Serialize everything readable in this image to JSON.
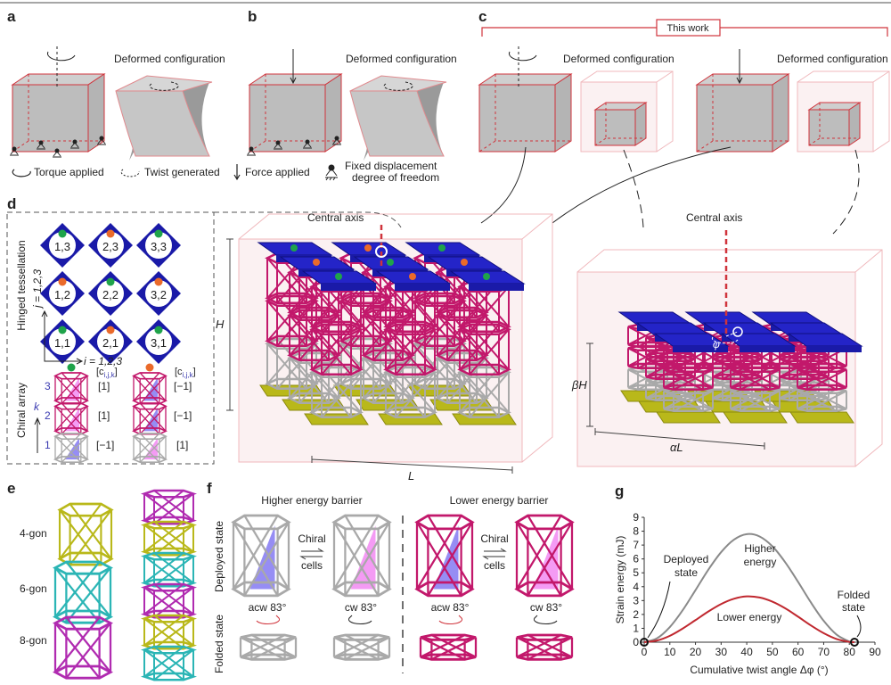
{
  "panels": {
    "a": "a",
    "b": "b",
    "c": "c",
    "d": "d",
    "e": "e",
    "f": "f",
    "g": "g"
  },
  "top": {
    "deformed_label": "Deformed configuration",
    "this_work": "This work"
  },
  "legend": {
    "torque": "Torque applied",
    "twist": "Twist generated",
    "force": "Force applied",
    "fixed_line1": "Fixed displacement",
    "fixed_line2": "degree of freedom"
  },
  "panel_d": {
    "hinged": "Hinged tessellation",
    "chiral": "Chiral array",
    "j_axis": "j = 1,2,3",
    "i_axis": "i = 1,2,3",
    "cells": [
      {
        "label": "1,3",
        "dot": "green"
      },
      {
        "label": "2,3",
        "dot": "orange"
      },
      {
        "label": "3,3",
        "dot": "green"
      },
      {
        "label": "1,2",
        "dot": "orange"
      },
      {
        "label": "2,2",
        "dot": "green"
      },
      {
        "label": "3,2",
        "dot": "orange"
      },
      {
        "label": "1,1",
        "dot": "green"
      },
      {
        "label": "2,1",
        "dot": "orange"
      },
      {
        "label": "3,1",
        "dot": "green"
      }
    ],
    "c_label": "[c",
    "c_sub": "i,j,k",
    "c_close": "]",
    "k_label": "k",
    "k_levels": [
      "3",
      "2",
      "1"
    ],
    "col1_values": [
      "[1]",
      "[1]",
      "[−1]"
    ],
    "col2_values": [
      "[−1]",
      "[−1]",
      "[1]"
    ]
  },
  "panel_d_main": {
    "central_axis": "Central axis",
    "H": "H",
    "L": "L"
  },
  "panel_d_right": {
    "central_axis": "Central axis",
    "betaH": "βH",
    "alphaL": "αL",
    "phi": "φ"
  },
  "panel_e": {
    "labels": [
      "4-gon",
      "6-gon",
      "8-gon"
    ]
  },
  "panel_f": {
    "higher": "Higher energy barrier",
    "lower": "Lower energy barrier",
    "deployed": "Deployed state",
    "folded": "Folded state",
    "chiral": "Chiral",
    "cells": "cells",
    "acw": "acw 83°",
    "cw": "cw 83°"
  },
  "colors": {
    "tile_blue": "#1a1aa8",
    "lattice_pink": "#c2186b",
    "lattice_gray": "#a9a9a9",
    "base_yellow": "#b9b81a",
    "cyan": "#2bb5b5",
    "purple": "#b02bb0",
    "accent_red": "#d0343c",
    "dot_green": "#1fa34a",
    "dot_orange": "#ea6a2a",
    "chiral_blue": "#6a5cf0",
    "chiral_magenta": "#f070f0"
  },
  "chart_data": {
    "type": "line",
    "xlabel": "Cumulative twist angle Δφ (°)",
    "ylabel": "Strain energy (mJ)",
    "xlim": [
      0,
      90
    ],
    "ylim": [
      0,
      9
    ],
    "xticks": [
      "0",
      "10",
      "20",
      "30",
      "40",
      "50",
      "60",
      "70",
      "80",
      "90"
    ],
    "yticks": [
      "0",
      "1",
      "2",
      "3",
      "4",
      "5",
      "6",
      "7",
      "8",
      "9"
    ],
    "grid": false,
    "x": [
      0,
      5,
      10,
      15,
      20,
      25,
      30,
      35,
      40,
      45,
      50,
      55,
      60,
      65,
      70,
      75,
      80,
      82
    ],
    "series": [
      {
        "name": "Higher energy",
        "color": "#8a8a8a",
        "values": [
          0,
          0.28,
          1.09,
          2.3,
          3.75,
          5.22,
          6.49,
          7.39,
          7.79,
          7.62,
          6.91,
          5.76,
          4.35,
          2.87,
          1.54,
          0.55,
          0.05,
          0
        ]
      },
      {
        "name": "Lower energy",
        "color": "#c0282f",
        "values": [
          0,
          0.12,
          0.46,
          0.98,
          1.59,
          2.21,
          2.75,
          3.13,
          3.3,
          3.22,
          2.92,
          2.44,
          1.84,
          1.21,
          0.65,
          0.23,
          0.02,
          0
        ]
      }
    ],
    "markers": [
      {
        "x": 0,
        "y": 0
      },
      {
        "x": 82,
        "y": 0
      }
    ],
    "annotations": {
      "higher_line1": "Higher",
      "higher_line2": "energy",
      "deployed_line1": "Deployed",
      "deployed_line2": "state",
      "folded_line1": "Folded",
      "folded_line2": "state",
      "lower": "Lower energy"
    }
  }
}
